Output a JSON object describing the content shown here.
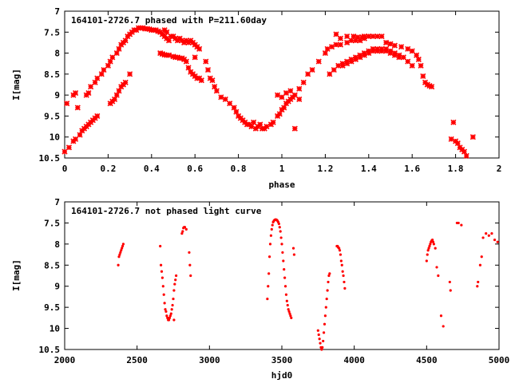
{
  "chart_data": [
    {
      "type": "scatter",
      "title": "164101-2726.7 phased with P=211.60day",
      "xlabel": "phase",
      "ylabel": "I[mag]",
      "xlim": [
        0,
        2
      ],
      "ylim": [
        10.5,
        7
      ],
      "y_inverted": true,
      "grid": false,
      "x_ticks": [
        "0",
        "0.2",
        "0.4",
        "0.6",
        "0.8",
        "1",
        "1.2",
        "1.4",
        "1.6",
        "1.8",
        "2"
      ],
      "y_ticks": [
        "7",
        "7.5",
        "8",
        "8.5",
        "9",
        "9.5",
        "10",
        "10.5"
      ],
      "marker": "cross",
      "color": "#ff0000",
      "points": [
        [
          0.0,
          10.35
        ],
        [
          0.02,
          10.25
        ],
        [
          0.04,
          10.1
        ],
        [
          0.05,
          10.05
        ],
        [
          0.07,
          9.95
        ],
        [
          0.08,
          9.85
        ],
        [
          0.09,
          9.8
        ],
        [
          0.1,
          9.75
        ],
        [
          0.11,
          9.7
        ],
        [
          0.12,
          9.65
        ],
        [
          0.13,
          9.6
        ],
        [
          0.14,
          9.55
        ],
        [
          0.15,
          9.5
        ],
        [
          0.01,
          9.2
        ],
        [
          0.04,
          9.0
        ],
        [
          0.05,
          8.95
        ],
        [
          0.06,
          9.3
        ],
        [
          0.1,
          9.0
        ],
        [
          0.11,
          8.95
        ],
        [
          0.12,
          8.8
        ],
        [
          0.14,
          8.7
        ],
        [
          0.15,
          8.6
        ],
        [
          0.17,
          8.5
        ],
        [
          0.18,
          8.4
        ],
        [
          0.2,
          8.3
        ],
        [
          0.21,
          8.2
        ],
        [
          0.22,
          8.1
        ],
        [
          0.24,
          8.0
        ],
        [
          0.25,
          7.9
        ],
        [
          0.26,
          7.8
        ],
        [
          0.27,
          7.75
        ],
        [
          0.28,
          7.7
        ],
        [
          0.29,
          7.6
        ],
        [
          0.3,
          7.55
        ],
        [
          0.21,
          9.2
        ],
        [
          0.22,
          9.15
        ],
        [
          0.23,
          9.1
        ],
        [
          0.24,
          9.0
        ],
        [
          0.25,
          8.9
        ],
        [
          0.26,
          8.8
        ],
        [
          0.27,
          8.75
        ],
        [
          0.28,
          8.7
        ],
        [
          0.3,
          8.5
        ],
        [
          0.31,
          7.5
        ],
        [
          0.32,
          7.45
        ],
        [
          0.33,
          7.45
        ],
        [
          0.34,
          7.4
        ],
        [
          0.35,
          7.4
        ],
        [
          0.36,
          7.4
        ],
        [
          0.37,
          7.42
        ],
        [
          0.38,
          7.42
        ],
        [
          0.39,
          7.43
        ],
        [
          0.4,
          7.45
        ],
        [
          0.41,
          7.45
        ],
        [
          0.42,
          7.45
        ],
        [
          0.43,
          7.48
        ],
        [
          0.44,
          7.5
        ],
        [
          0.45,
          7.55
        ],
        [
          0.46,
          7.45
        ],
        [
          0.47,
          7.5
        ],
        [
          0.46,
          7.6
        ],
        [
          0.47,
          7.65
        ],
        [
          0.48,
          7.7
        ],
        [
          0.49,
          7.6
        ],
        [
          0.5,
          7.6
        ],
        [
          0.51,
          7.65
        ],
        [
          0.52,
          7.7
        ],
        [
          0.53,
          7.65
        ],
        [
          0.54,
          7.7
        ],
        [
          0.55,
          7.75
        ],
        [
          0.56,
          7.7
        ],
        [
          0.57,
          7.75
        ],
        [
          0.58,
          7.7
        ],
        [
          0.59,
          7.75
        ],
        [
          0.6,
          7.8
        ],
        [
          0.61,
          7.85
        ],
        [
          0.62,
          7.9
        ],
        [
          0.6,
          8.1
        ],
        [
          0.44,
          8.0
        ],
        [
          0.45,
          8.02
        ],
        [
          0.46,
          8.04
        ],
        [
          0.47,
          8.05
        ],
        [
          0.48,
          8.05
        ],
        [
          0.5,
          8.08
        ],
        [
          0.51,
          8.1
        ],
        [
          0.52,
          8.1
        ],
        [
          0.53,
          8.12
        ],
        [
          0.54,
          8.12
        ],
        [
          0.55,
          8.15
        ],
        [
          0.56,
          8.2
        ],
        [
          0.57,
          8.35
        ],
        [
          0.58,
          8.45
        ],
        [
          0.59,
          8.5
        ],
        [
          0.6,
          8.55
        ],
        [
          0.61,
          8.6
        ],
        [
          0.62,
          8.6
        ],
        [
          0.63,
          8.65
        ],
        [
          0.65,
          8.2
        ],
        [
          0.66,
          8.4
        ],
        [
          0.67,
          8.6
        ],
        [
          0.68,
          8.65
        ],
        [
          0.69,
          8.8
        ],
        [
          0.7,
          8.9
        ],
        [
          0.72,
          9.05
        ],
        [
          0.74,
          9.1
        ],
        [
          0.76,
          9.2
        ],
        [
          0.78,
          9.3
        ],
        [
          0.79,
          9.4
        ],
        [
          0.8,
          9.5
        ],
        [
          0.81,
          9.55
        ],
        [
          0.82,
          9.6
        ],
        [
          0.83,
          9.65
        ],
        [
          0.84,
          9.7
        ],
        [
          0.85,
          9.7
        ],
        [
          0.86,
          9.75
        ],
        [
          0.87,
          9.65
        ],
        [
          0.88,
          9.8
        ],
        [
          0.89,
          9.75
        ],
        [
          0.9,
          9.7
        ],
        [
          0.91,
          9.8
        ],
        [
          0.92,
          9.8
        ],
        [
          0.93,
          9.75
        ],
        [
          0.95,
          9.7
        ],
        [
          0.96,
          9.65
        ],
        [
          0.98,
          9.5
        ],
        [
          0.99,
          9.45
        ],
        [
          1.0,
          9.35
        ],
        [
          1.01,
          9.3
        ],
        [
          1.02,
          9.2
        ],
        [
          1.03,
          9.15
        ],
        [
          1.04,
          9.1
        ],
        [
          1.05,
          9.05
        ],
        [
          1.06,
          9.0
        ],
        [
          1.08,
          8.85
        ],
        [
          1.1,
          8.7
        ],
        [
          1.12,
          8.5
        ],
        [
          1.14,
          8.4
        ],
        [
          1.17,
          8.2
        ],
        [
          1.2,
          8.0
        ],
        [
          1.21,
          7.9
        ],
        [
          1.23,
          7.85
        ],
        [
          1.25,
          7.8
        ],
        [
          1.27,
          7.8
        ],
        [
          1.3,
          7.75
        ],
        [
          1.32,
          7.7
        ],
        [
          1.34,
          7.7
        ],
        [
          1.36,
          7.7
        ],
        [
          1.38,
          7.65
        ],
        [
          1.4,
          7.6
        ],
        [
          1.42,
          7.6
        ],
        [
          1.44,
          7.6
        ],
        [
          1.46,
          7.6
        ],
        [
          0.98,
          9.0
        ],
        [
          1.0,
          9.05
        ],
        [
          1.02,
          8.95
        ],
        [
          1.04,
          8.9
        ],
        [
          1.06,
          9.8
        ],
        [
          1.08,
          9.1
        ],
        [
          1.22,
          8.5
        ],
        [
          1.24,
          8.4
        ],
        [
          1.26,
          8.3
        ],
        [
          1.28,
          8.25
        ],
        [
          1.3,
          8.2
        ],
        [
          1.32,
          8.15
        ],
        [
          1.34,
          8.1
        ],
        [
          1.36,
          8.05
        ],
        [
          1.38,
          8.0
        ],
        [
          1.4,
          7.95
        ],
        [
          1.42,
          7.9
        ],
        [
          1.44,
          7.9
        ],
        [
          1.46,
          7.9
        ],
        [
          1.48,
          7.9
        ],
        [
          1.5,
          7.95
        ],
        [
          1.52,
          8.0
        ],
        [
          1.54,
          8.05
        ],
        [
          1.28,
          8.3
        ],
        [
          1.3,
          8.25
        ],
        [
          1.32,
          8.2
        ],
        [
          1.34,
          8.15
        ],
        [
          1.36,
          8.1
        ],
        [
          1.38,
          8.05
        ],
        [
          1.4,
          8.0
        ],
        [
          1.42,
          7.95
        ],
        [
          1.44,
          7.95
        ],
        [
          1.46,
          7.95
        ],
        [
          1.48,
          7.95
        ],
        [
          1.5,
          8.0
        ],
        [
          1.52,
          8.05
        ],
        [
          1.54,
          8.1
        ],
        [
          1.56,
          8.1
        ],
        [
          1.58,
          8.2
        ],
        [
          1.6,
          8.3
        ],
        [
          1.25,
          7.55
        ],
        [
          1.27,
          7.65
        ],
        [
          1.3,
          7.6
        ],
        [
          1.33,
          7.6
        ],
        [
          1.35,
          7.62
        ],
        [
          1.37,
          7.62
        ],
        [
          1.38,
          7.6
        ],
        [
          1.4,
          7.6
        ],
        [
          1.48,
          7.75
        ],
        [
          1.5,
          7.78
        ],
        [
          1.52,
          7.82
        ],
        [
          1.55,
          7.85
        ],
        [
          1.58,
          7.9
        ],
        [
          1.6,
          7.95
        ],
        [
          1.62,
          8.05
        ],
        [
          1.63,
          8.15
        ],
        [
          1.64,
          8.3
        ],
        [
          1.65,
          8.55
        ],
        [
          1.66,
          8.7
        ],
        [
          1.67,
          8.75
        ],
        [
          1.68,
          8.78
        ],
        [
          1.69,
          8.8
        ],
        [
          1.79,
          9.65
        ],
        [
          1.78,
          10.05
        ],
        [
          1.8,
          10.1
        ],
        [
          1.81,
          10.15
        ],
        [
          1.82,
          10.25
        ],
        [
          1.83,
          10.3
        ],
        [
          1.84,
          10.35
        ],
        [
          1.85,
          10.45
        ],
        [
          1.88,
          10.0
        ]
      ]
    },
    {
      "type": "scatter",
      "title": "164101-2726.7 not phased light curve",
      "xlabel": "hjd0",
      "ylabel": "I[mag]",
      "xlim": [
        2000,
        5000
      ],
      "ylim": [
        10.5,
        7
      ],
      "y_inverted": true,
      "grid": false,
      "x_ticks": [
        "2000",
        "2500",
        "3000",
        "3500",
        "4000",
        "4500",
        "5000"
      ],
      "y_ticks": [
        "7",
        "7.5",
        "8",
        "8.5",
        "9",
        "9.5",
        "10",
        "10.5"
      ],
      "marker": "dot",
      "color": "#ff0000",
      "points": [
        [
          2370,
          8.5
        ],
        [
          2375,
          8.3
        ],
        [
          2380,
          8.25
        ],
        [
          2385,
          8.2
        ],
        [
          2390,
          8.15
        ],
        [
          2395,
          8.1
        ],
        [
          2400,
          8.05
        ],
        [
          2405,
          8.0
        ],
        [
          2660,
          8.05
        ],
        [
          2665,
          8.5
        ],
        [
          2670,
          8.65
        ],
        [
          2675,
          8.8
        ],
        [
          2680,
          9.0
        ],
        [
          2685,
          9.2
        ],
        [
          2690,
          9.4
        ],
        [
          2695,
          9.55
        ],
        [
          2700,
          9.6
        ],
        [
          2705,
          9.7
        ],
        [
          2710,
          9.75
        ],
        [
          2715,
          9.8
        ],
        [
          2720,
          9.8
        ],
        [
          2725,
          9.75
        ],
        [
          2730,
          9.7
        ],
        [
          2735,
          9.65
        ],
        [
          2740,
          9.55
        ],
        [
          2745,
          9.45
        ],
        [
          2750,
          9.3
        ],
        [
          2755,
          9.1
        ],
        [
          2760,
          8.95
        ],
        [
          2765,
          8.85
        ],
        [
          2770,
          8.75
        ],
        [
          2755,
          9.8
        ],
        [
          2810,
          7.75
        ],
        [
          2815,
          7.7
        ],
        [
          2820,
          7.62
        ],
        [
          2825,
          7.6
        ],
        [
          2830,
          7.6
        ],
        [
          2840,
          7.65
        ],
        [
          2860,
          8.2
        ],
        [
          2865,
          8.5
        ],
        [
          2870,
          8.75
        ],
        [
          3400,
          9.3
        ],
        [
          3405,
          9.0
        ],
        [
          3410,
          8.7
        ],
        [
          3415,
          8.3
        ],
        [
          3420,
          8.0
        ],
        [
          3425,
          7.8
        ],
        [
          3430,
          7.65
        ],
        [
          3435,
          7.55
        ],
        [
          3440,
          7.48
        ],
        [
          3445,
          7.45
        ],
        [
          3450,
          7.43
        ],
        [
          3455,
          7.42
        ],
        [
          3460,
          7.42
        ],
        [
          3465,
          7.43
        ],
        [
          3470,
          7.45
        ],
        [
          3475,
          7.48
        ],
        [
          3480,
          7.52
        ],
        [
          3485,
          7.6
        ],
        [
          3490,
          7.7
        ],
        [
          3495,
          7.85
        ],
        [
          3500,
          8.0
        ],
        [
          3505,
          8.2
        ],
        [
          3510,
          8.4
        ],
        [
          3515,
          8.6
        ],
        [
          3520,
          8.8
        ],
        [
          3525,
          9.0
        ],
        [
          3530,
          9.2
        ],
        [
          3535,
          9.35
        ],
        [
          3540,
          9.45
        ],
        [
          3545,
          9.55
        ],
        [
          3550,
          9.6
        ],
        [
          3555,
          9.65
        ],
        [
          3560,
          9.7
        ],
        [
          3565,
          9.75
        ],
        [
          3580,
          8.1
        ],
        [
          3585,
          8.25
        ],
        [
          3750,
          10.05
        ],
        [
          3755,
          10.15
        ],
        [
          3760,
          10.25
        ],
        [
          3765,
          10.35
        ],
        [
          3770,
          10.45
        ],
        [
          3775,
          10.5
        ],
        [
          3780,
          10.45
        ],
        [
          3785,
          10.3
        ],
        [
          3790,
          10.1
        ],
        [
          3795,
          9.9
        ],
        [
          3800,
          9.7
        ],
        [
          3805,
          9.5
        ],
        [
          3810,
          9.3
        ],
        [
          3815,
          9.1
        ],
        [
          3820,
          8.9
        ],
        [
          3825,
          8.75
        ],
        [
          3830,
          8.7
        ],
        [
          3880,
          8.05
        ],
        [
          3885,
          8.05
        ],
        [
          3890,
          8.08
        ],
        [
          3895,
          8.1
        ],
        [
          3900,
          8.15
        ],
        [
          3905,
          8.25
        ],
        [
          3910,
          8.4
        ],
        [
          3915,
          8.5
        ],
        [
          3920,
          8.65
        ],
        [
          3925,
          8.75
        ],
        [
          3930,
          8.9
        ],
        [
          3935,
          9.05
        ],
        [
          4500,
          8.4
        ],
        [
          4505,
          8.25
        ],
        [
          4510,
          8.15
        ],
        [
          4515,
          8.1
        ],
        [
          4520,
          8.05
        ],
        [
          4525,
          8.0
        ],
        [
          4530,
          7.95
        ],
        [
          4535,
          7.92
        ],
        [
          4540,
          7.9
        ],
        [
          4545,
          7.95
        ],
        [
          4550,
          8.0
        ],
        [
          4560,
          8.1
        ],
        [
          4570,
          8.55
        ],
        [
          4580,
          8.75
        ],
        [
          4600,
          9.7
        ],
        [
          4615,
          9.95
        ],
        [
          4660,
          8.9
        ],
        [
          4665,
          9.1
        ],
        [
          4710,
          7.5
        ],
        [
          4720,
          7.5
        ],
        [
          4740,
          7.55
        ],
        [
          4850,
          9.0
        ],
        [
          4855,
          8.9
        ],
        [
          4870,
          8.5
        ],
        [
          4880,
          8.3
        ],
        [
          4890,
          7.85
        ],
        [
          4910,
          7.75
        ],
        [
          4930,
          7.8
        ],
        [
          4950,
          7.75
        ],
        [
          4970,
          7.9
        ],
        [
          4990,
          7.95
        ]
      ]
    }
  ]
}
